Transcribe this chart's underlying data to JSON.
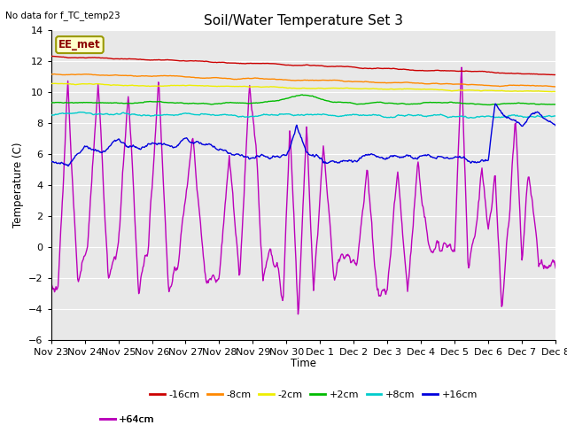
{
  "title": "Soil/Water Temperature Set 3",
  "subtitle": "No data for f_TC_temp23",
  "ylabel": "Temperature (C)",
  "xlabel": "Time",
  "annotation": "EE_met",
  "ylim": [
    -6,
    14
  ],
  "yticks": [
    -6,
    -4,
    -2,
    0,
    2,
    4,
    6,
    8,
    10,
    12,
    14
  ],
  "bg_color": "#e8e8e8",
  "fig_bg": "#ffffff",
  "xtick_labels": [
    "Nov 23",
    "Nov 24",
    "Nov 25",
    "Nov 26",
    "Nov 27",
    "Nov 28",
    "Nov 29",
    "Nov 30",
    "Dec 1",
    "Dec 2",
    "Dec 3",
    "Dec 4",
    "Dec 5",
    "Dec 6",
    "Dec 7",
    "Dec 8"
  ],
  "legend_entries": [
    "-16cm",
    "-8cm",
    "-2cm",
    "+2cm",
    "+8cm",
    "+16cm",
    "+64cm"
  ],
  "legend_colors": [
    "#cc0000",
    "#ff8800",
    "#eeee00",
    "#00bb00",
    "#00cccc",
    "#0000dd",
    "#bb00bb"
  ]
}
